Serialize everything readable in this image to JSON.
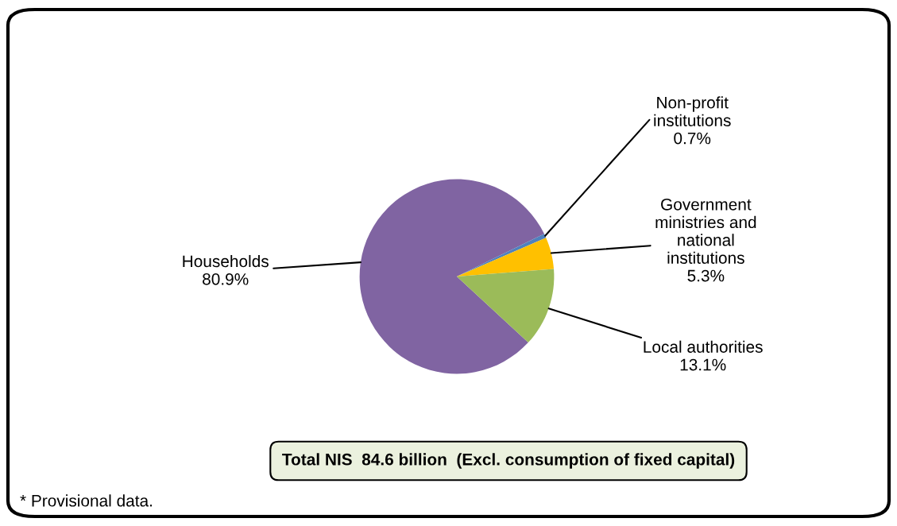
{
  "chart_data": {
    "type": "pie",
    "categories": [
      "Households",
      "Non-profit\ninstitutions",
      "Government\nministries and\nnational\ninstitutions",
      "Local authorities"
    ],
    "values": [
      80.9,
      0.7,
      5.3,
      13.1
    ],
    "colors": [
      "#8064a2",
      "#4f81bd",
      "#ffc000",
      "#9bbb59"
    ],
    "value_labels": [
      "80.9%",
      "0.7%",
      "5.3%",
      "13.1%"
    ],
    "legend": false,
    "annotations": [
      "Total NIS  84.6 billion  (Excl. consumption of fixed capital)",
      "* Provisional data."
    ]
  }
}
